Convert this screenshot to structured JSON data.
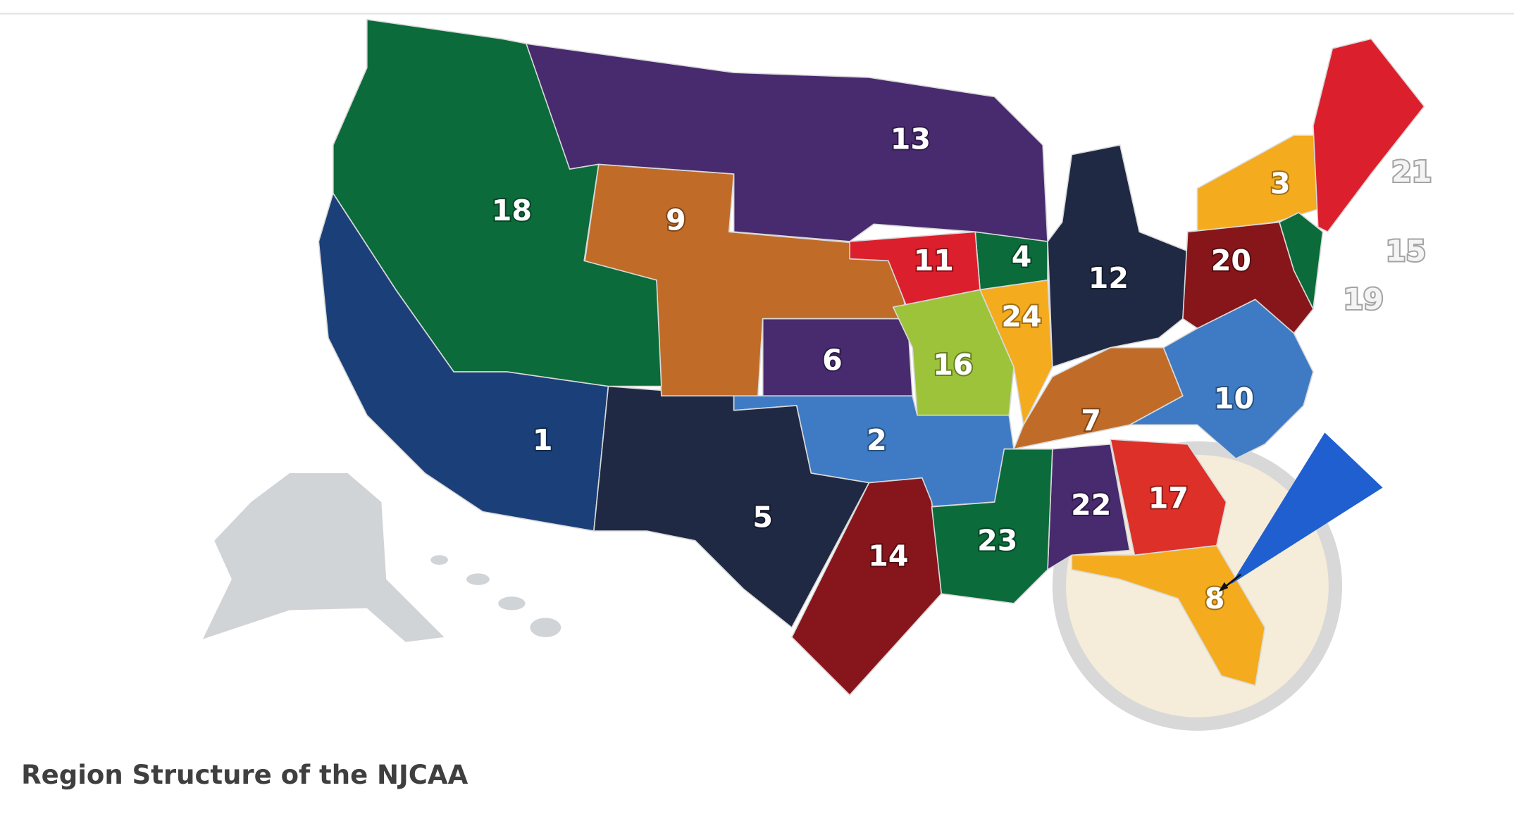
{
  "map": {
    "regions": [
      {
        "label": "1"
      },
      {
        "label": "2"
      },
      {
        "label": "3"
      },
      {
        "label": "4"
      },
      {
        "label": "5"
      },
      {
        "label": "6"
      },
      {
        "label": "7"
      },
      {
        "label": "8"
      },
      {
        "label": "9"
      },
      {
        "label": "10"
      },
      {
        "label": "11"
      },
      {
        "label": "12"
      },
      {
        "label": "13"
      },
      {
        "label": "14"
      },
      {
        "label": "15"
      },
      {
        "label": "16"
      },
      {
        "label": "17"
      },
      {
        "label": "18"
      },
      {
        "label": "19"
      },
      {
        "label": "20"
      },
      {
        "label": "21"
      },
      {
        "label": "22"
      },
      {
        "label": "23"
      },
      {
        "label": "24"
      }
    ]
  },
  "caption": "Region Structure of the NJCAA"
}
